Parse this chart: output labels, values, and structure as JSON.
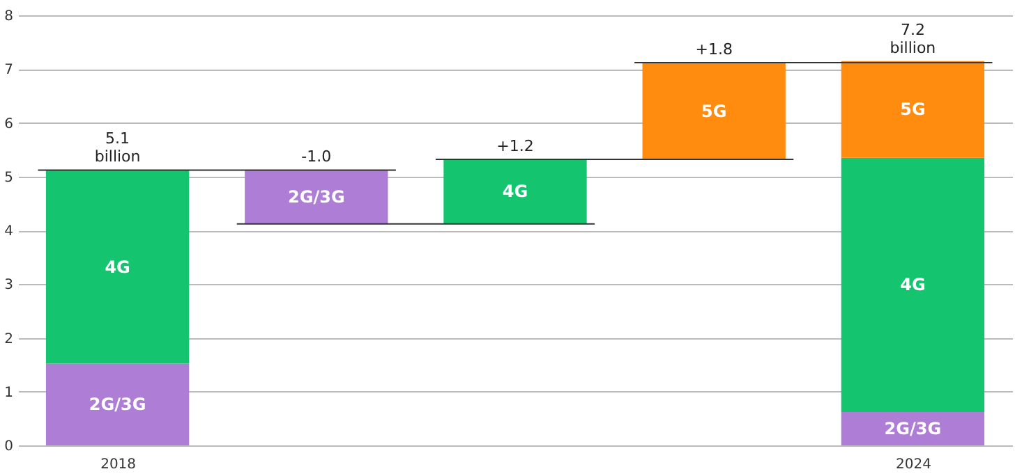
{
  "chart_data": {
    "type": "bar",
    "categories": [
      "2018",
      null,
      null,
      null,
      "2024"
    ],
    "series": [
      {
        "name": "2G/3G",
        "color": "#ae7ed6",
        "values": [
          1.52,
          -1.0,
          null,
          null,
          0.62
        ],
        "base": [
          0,
          5.12,
          null,
          null,
          0
        ]
      },
      {
        "name": "4G",
        "color": "#14c46e",
        "values": [
          3.6,
          null,
          1.2,
          null,
          4.73
        ],
        "base": [
          1.52,
          null,
          4.12,
          null,
          0.62
        ]
      },
      {
        "name": "5G",
        "color": "#ff8c0f",
        "values": [
          null,
          null,
          null,
          1.8,
          1.8
        ],
        "base": [
          null,
          null,
          null,
          5.32,
          5.35
        ]
      }
    ],
    "totals": [
      "5.1 billion",
      "-1.0",
      "+1.2",
      "+1.8",
      "7.2 billion"
    ],
    "ref_lines": [
      {
        "axis": "y",
        "value": 5.12,
        "color": "#333333"
      },
      {
        "axis": "y",
        "value": 4.12,
        "color": "#333333"
      },
      {
        "axis": "y",
        "value": 5.32,
        "color": "#333333"
      },
      {
        "axis": "y",
        "value": 7.12,
        "color": "#333333"
      }
    ],
    "ylim": [
      0,
      8
    ],
    "yticks": [
      0,
      1,
      2,
      3,
      4,
      5,
      6,
      7,
      8
    ],
    "grid": "y"
  }
}
